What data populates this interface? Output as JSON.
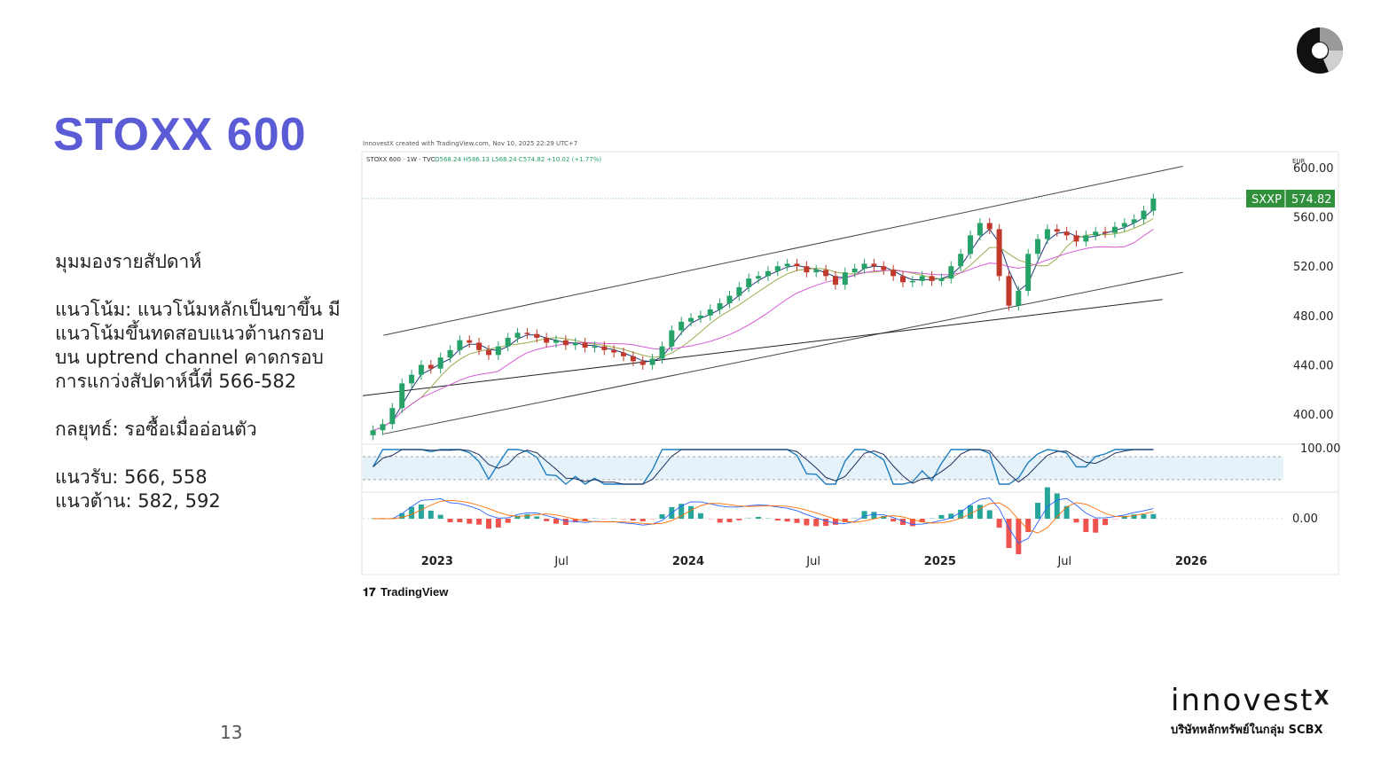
{
  "slide": {
    "title": "STOXX 600",
    "page_number": "13"
  },
  "analysis": {
    "heading": "มุมมองรายสัปดาห์",
    "trend": "แนวโน้ม: แนวโน้มหลักเป็นขาขึ้น มีแนวโน้มขึ้นทดสอบแนวต้านกรอบบน uptrend channel คาดกรอบการแกว่งสัปดาห์นี้ที่ 566-582",
    "strategy": "กลยุทธ์: รอซื้อเมื่ออ่อนตัว",
    "support": "แนวรับ: 566, 558",
    "resistance": "แนวต้าน: 582, 592"
  },
  "brand": {
    "name": "innovest",
    "superscript": "X",
    "subtitle": "บริษัทหลักทรัพย์ในกลุ่ม SCBX"
  },
  "chart_data": {
    "type": "line",
    "source_note": "InnovestX created with TradingView.com, Nov 10, 2025 22:29 UTC+7",
    "legend": "STOXX 600 · 1W · TVC",
    "ohlc": "O568.24 H586.13 L568.24 C574.82 +10.02 (+1.77%)",
    "currency": "EUR",
    "ticker": "SXXP",
    "last_price": "574.82",
    "y_ticks": [
      "600.00",
      "560.00",
      "520.00",
      "480.00",
      "440.00",
      "400.00"
    ],
    "y_range": [
      380,
      610
    ],
    "x_ticks": [
      "2023",
      "Jul",
      "2024",
      "Jul",
      "2025",
      "Jul",
      "2026"
    ],
    "oscillator_label": "100.00",
    "macd_label": "0.00",
    "watermark": "TradingView",
    "colors": {
      "up": "#26a269",
      "down": "#c0392b",
      "ma_fast": "#1f3b73",
      "ma_mid": "#9bab4d",
      "ma_slow": "#d65ad6",
      "channel": "#444444",
      "price_tag": "#2f8f3a"
    },
    "series": [
      {
        "x": [
          "2022-09-30",
          "2022-10-14",
          "2022-10-28",
          "2022-11-11",
          "2022-11-25",
          "2022-12-09",
          "2022-12-23",
          "2023-01-06",
          "2023-01-20",
          "2023-02-03",
          "2023-02-17",
          "2023-03-03",
          "2023-03-17",
          "2023-03-31",
          "2023-04-14",
          "2023-04-28",
          "2023-05-12",
          "2023-05-26",
          "2023-06-09",
          "2023-06-23",
          "2023-07-07",
          "2023-07-21",
          "2023-08-04",
          "2023-08-18",
          "2023-09-01",
          "2023-09-15",
          "2023-09-29",
          "2023-10-13",
          "2023-10-27",
          "2023-11-10",
          "2023-11-24",
          "2023-12-08",
          "2023-12-22",
          "2024-01-05",
          "2024-01-19",
          "2024-02-02",
          "2024-02-16",
          "2024-03-01",
          "2024-03-15",
          "2024-03-29",
          "2024-04-12",
          "2024-04-26",
          "2024-05-10",
          "2024-05-24",
          "2024-06-07",
          "2024-06-21",
          "2024-07-05",
          "2024-07-19",
          "2024-08-02",
          "2024-08-16",
          "2024-08-30",
          "2024-09-13",
          "2024-09-27",
          "2024-10-11",
          "2024-10-25",
          "2024-11-08",
          "2024-11-22",
          "2024-12-06",
          "2024-12-20",
          "2025-01-03",
          "2025-01-17",
          "2025-01-31",
          "2025-02-14",
          "2025-02-28",
          "2025-03-14",
          "2025-03-28",
          "2025-04-11",
          "2025-04-25",
          "2025-05-09",
          "2025-05-23",
          "2025-06-06",
          "2025-06-20",
          "2025-07-04",
          "2025-07-18",
          "2025-08-01",
          "2025-08-15",
          "2025-08-29",
          "2025-09-12",
          "2025-09-26",
          "2025-10-10",
          "2025-10-24",
          "2025-11-07"
        ],
        "y": [
          387,
          392,
          405,
          425,
          432,
          440,
          437,
          446,
          452,
          460,
          458,
          452,
          448,
          455,
          462,
          466,
          465,
          462,
          458,
          460,
          456,
          458,
          454,
          455,
          452,
          450,
          447,
          443,
          440,
          445,
          455,
          468,
          475,
          478,
          480,
          485,
          490,
          496,
          503,
          510,
          512,
          516,
          520,
          522,
          520,
          515,
          517,
          512,
          505,
          515,
          518,
          522,
          520,
          517,
          512,
          507,
          508,
          512,
          508,
          510,
          520,
          530,
          545,
          555,
          550,
          512,
          488,
          500,
          530,
          542,
          550,
          548,
          545,
          540,
          545,
          548,
          547,
          552,
          555,
          558,
          565,
          574.82
        ]
      }
    ]
  }
}
